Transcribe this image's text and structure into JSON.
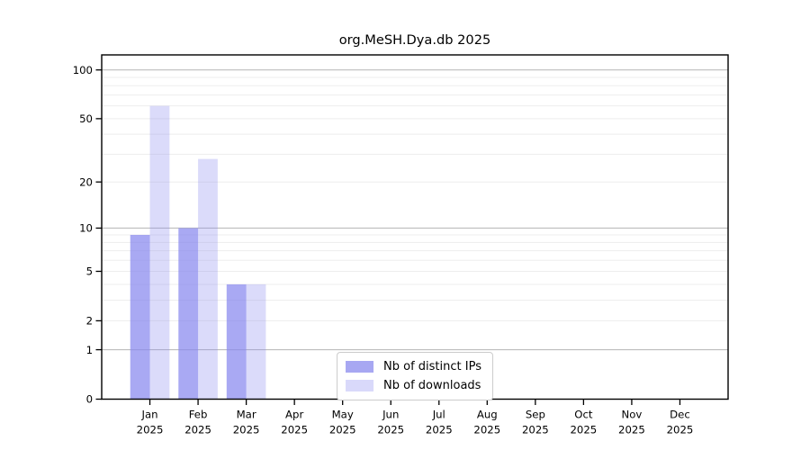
{
  "title": "org.MeSH.Dya.db 2025",
  "chart_data": {
    "type": "bar",
    "title": "org.MeSH.Dya.db 2025",
    "categories": [
      "Jan",
      "Feb",
      "Mar",
      "Apr",
      "May",
      "Jun",
      "Jul",
      "Aug",
      "Sep",
      "Oct",
      "Nov",
      "Dec"
    ],
    "x_tick_second_line": "2025",
    "series": [
      {
        "name": "Nb of distinct IPs",
        "values": [
          9,
          10,
          4,
          0,
          0,
          0,
          0,
          0,
          0,
          0,
          0,
          0
        ],
        "fill": "#8888ee",
        "fill_opacity": 0.72,
        "rendered_color": "#a8a8f0"
      },
      {
        "name": "Nb of downloads",
        "values": [
          60,
          28,
          4,
          0,
          0,
          0,
          0,
          0,
          0,
          0,
          0,
          0
        ],
        "fill": "#8888ee",
        "fill_opacity": 0.3,
        "rendered_color": "#dcdcf8"
      }
    ],
    "y_axis": {
      "scale": "log10(1+x)",
      "tick_values": [
        0,
        1,
        2,
        5,
        10,
        20,
        50,
        100
      ],
      "gridline_values": [
        1,
        2,
        3,
        4,
        5,
        6,
        7,
        8,
        9,
        10,
        20,
        30,
        40,
        50,
        60,
        70,
        80,
        90,
        100
      ],
      "major_gridline_values": [
        1,
        10,
        100
      ],
      "top_value": 124
    },
    "legend": {
      "position": "lower-center"
    },
    "colors": {
      "grid_minor": "#ededed",
      "grid_major": "#bdbdbd",
      "axis_frame": "#000000",
      "background": "#ffffff",
      "text": "#000000"
    },
    "grid": "on"
  }
}
